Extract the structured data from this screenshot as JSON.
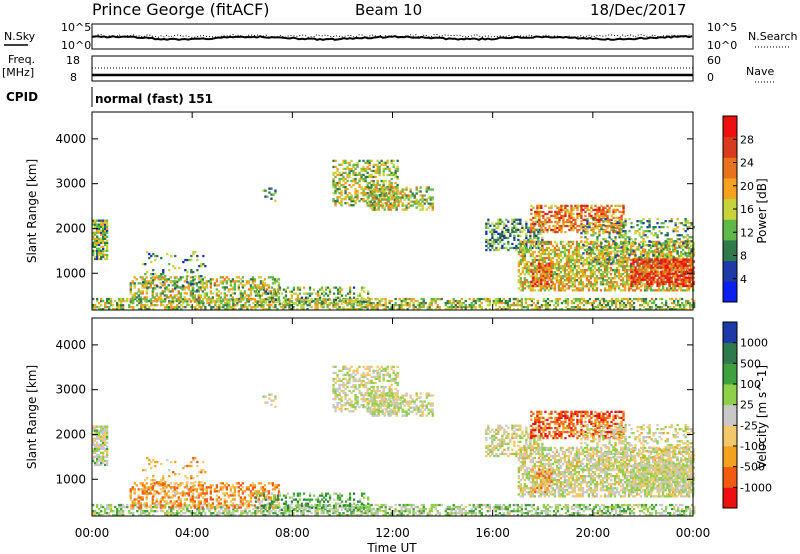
{
  "header": {
    "station": "Prince George (fitACF)",
    "beam": "Beam 10",
    "date": "18/Dec/2017"
  },
  "top_panel": {
    "left_label": "N.Sky",
    "right_label": "N.Search",
    "left_ticks": [
      "10^5",
      "10^0"
    ],
    "right_ticks": [
      "10^5",
      "10^0"
    ]
  },
  "freq_panel": {
    "label_line1": "Freq.",
    "label_line2": "[MHz]",
    "left_ticks": [
      "18",
      "8"
    ],
    "right_ticks": [
      "60",
      "0"
    ],
    "right_label": "Nave"
  },
  "cpid": {
    "label": "CPID",
    "value": "normal (fast) 151"
  },
  "colors": {
    "power": [
      "#0a1ff0",
      "#1e3aa8",
      "#2e7a4a",
      "#5fb84a",
      "#c6d33a",
      "#f2a21e",
      "#e8721e",
      "#d93c1c",
      "#ee1010"
    ],
    "velocity": [
      "#ee1010",
      "#f25a10",
      "#f2a21e",
      "#f2c86a",
      "#c8c8c8",
      "#8fd04a",
      "#3fa040",
      "#2e7a4a",
      "#1e3aa8"
    ]
  },
  "chart_data": [
    {
      "type": "heatmap",
      "name": "power",
      "xlabel": "",
      "ylabel": "Slant Range [km]",
      "x_ticks": [],
      "y_ticks": [
        1000,
        2000,
        3000,
        4000
      ],
      "xlim": [
        0,
        24
      ],
      "ylim": [
        180,
        4600
      ],
      "colorbar": {
        "label": "Power [dB]",
        "ticks": [
          4,
          8,
          12,
          16,
          20,
          24,
          28
        ],
        "range": [
          0,
          32
        ]
      }
    },
    {
      "type": "heatmap",
      "name": "velocity",
      "xlabel": "Time UT",
      "ylabel": "Slant Range [km]",
      "x_ticks": [
        "00:00",
        "04:00",
        "08:00",
        "12:00",
        "16:00",
        "20:00",
        "00:00"
      ],
      "y_ticks": [
        1000,
        2000,
        3000,
        4000
      ],
      "xlim": [
        0,
        24
      ],
      "ylim": [
        180,
        4600
      ],
      "colorbar": {
        "label": "Velocity [m s^-1]",
        "ticks": [
          -1000,
          -500,
          -100,
          -25,
          25,
          100,
          500,
          1000
        ]
      }
    }
  ]
}
